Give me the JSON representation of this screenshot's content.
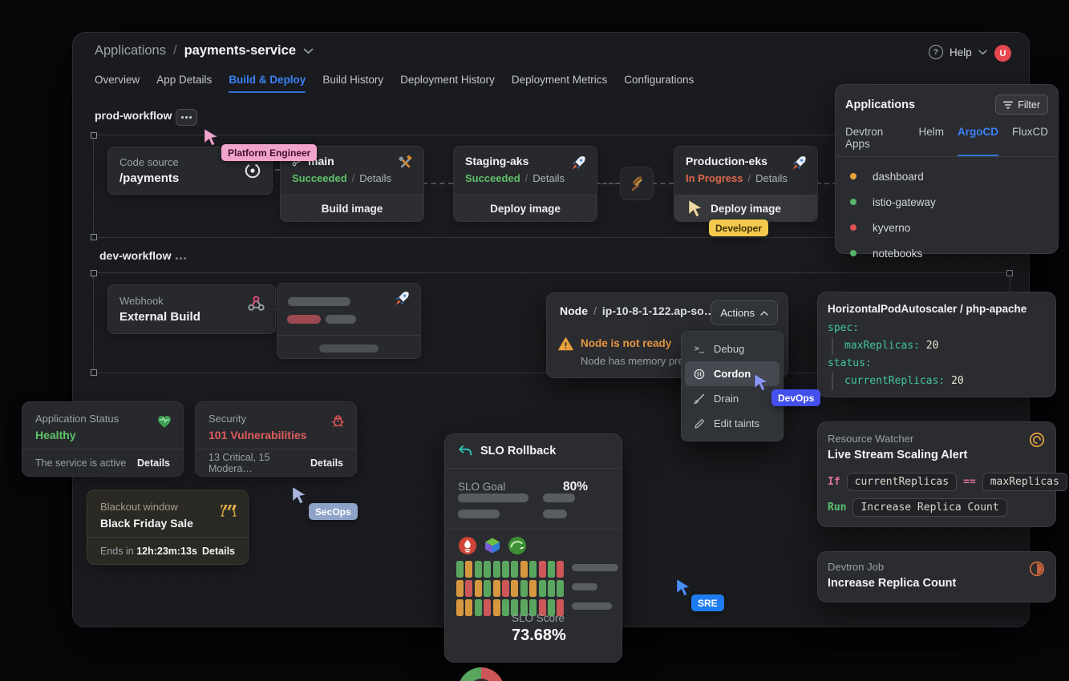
{
  "header": {
    "breadcrumb_root": "Applications",
    "separator": "/",
    "app_name": "payments-service",
    "help_label": "Help",
    "avatar_initial": "U"
  },
  "nav_tabs": {
    "items": [
      "Overview",
      "App Details",
      "Build & Deploy",
      "Build History",
      "Deployment History",
      "Deployment Metrics",
      "Configurations"
    ],
    "active": "Build & Deploy"
  },
  "prod_workflow": {
    "title": "prod-workflow",
    "code_source": {
      "label": "Code source",
      "value": "/payments"
    },
    "build_node": {
      "name": "main",
      "status": "Succeeded",
      "separator": "/",
      "details_label": "Details",
      "action_label": "Build image"
    },
    "staging_node": {
      "name": "Staging-aks",
      "status": "Succeeded",
      "separator": "/",
      "details_label": "Details",
      "action_label": "Deploy image"
    },
    "production_node": {
      "name": "Production-eks",
      "status": "In Progress",
      "separator": "/",
      "details_label": "Details",
      "action_label": "Deploy image"
    }
  },
  "dev_workflow": {
    "title": "dev-workflow",
    "webhook_node": {
      "label": "Webhook",
      "value": "External Build"
    }
  },
  "node_panel": {
    "resource_kind": "Node",
    "separator": "/",
    "resource_name": "ip-10-8-1-122.ap-so…",
    "actions_label": "Actions",
    "warning_title": "Node is not ready",
    "warning_description": "Node has memory pre",
    "menu_items": [
      {
        "label": "Debug"
      },
      {
        "label": "Cordon"
      },
      {
        "label": "Drain"
      },
      {
        "label": "Edit taints"
      }
    ],
    "selected_item": "Cordon"
  },
  "hpa_panel": {
    "title": "HorizontalPodAutoscaler / php-apache",
    "yaml": {
      "spec_key": "spec:",
      "max_replicas_key": "maxReplicas:",
      "max_replicas_value": "20",
      "status_key": "status:",
      "current_replicas_key": "currentReplicas:",
      "current_replicas_value": "20"
    }
  },
  "status_cards": {
    "application": {
      "label": "Application Status",
      "value": "Healthy",
      "value_color": "#5ec269",
      "footer": "The service is active",
      "details_label": "Details"
    },
    "security": {
      "label": "Security",
      "value": "101 Vulnerabilities",
      "value_color": "#e05c5c",
      "footer": "13 Critical, 15 Modera…",
      "details_label": "Details"
    },
    "blackout": {
      "label": "Blackout window",
      "value": "Black Friday Sale",
      "footer_prefix": "Ends in",
      "countdown": "12h:23m:13s",
      "details_label": "Details"
    }
  },
  "slo_panel": {
    "title": "SLO Rollback",
    "goal_label": "SLO Goal",
    "goal_value": "80%",
    "score_label": "SLO Score",
    "score_value": "73.68%",
    "heatmap": {
      "cell_colors": {
        "g": "#5aa65f",
        "o": "#d6973f",
        "r": "#cc5658"
      },
      "rows": [
        [
          "g",
          "o",
          "g",
          "g",
          "g",
          "g",
          "g",
          "o",
          "g",
          "r",
          "g",
          "r"
        ],
        [
          "o",
          "r",
          "o",
          "g",
          "o",
          "r",
          "o",
          "g",
          "o",
          "g",
          "g",
          "g"
        ],
        [
          "o",
          "o",
          "g",
          "r",
          "o",
          "g",
          "g",
          "g",
          "g",
          "r",
          "g",
          "r"
        ]
      ]
    },
    "donut_segments": [
      {
        "color": "#cc5658",
        "percent": 24
      },
      {
        "color": "#d6973f",
        "percent": 27
      },
      {
        "color": "#5aa65f",
        "percent": 49
      }
    ]
  },
  "resource_watcher": {
    "label": "Resource Watcher",
    "title": "Live Stream Scaling Alert",
    "if_keyword": "If",
    "condition_left": "currentReplicas",
    "operator": "==",
    "condition_right": "maxReplicas",
    "run_keyword": "Run",
    "run_action": "Increase Replica Count"
  },
  "devtron_job": {
    "label": "Devtron Job",
    "title": "Increase Replica Count"
  },
  "apps_panel": {
    "title": "Applications",
    "filter_label": "Filter",
    "tabs": [
      "Devtron Apps",
      "Helm",
      "ArgoCD",
      "FluxCD"
    ],
    "active_tab": "ArgoCD",
    "items": [
      {
        "name": "dashboard",
        "status_color": "#e8a33d"
      },
      {
        "name": "istio-gateway",
        "status_color": "#57b368"
      },
      {
        "name": "kyverno",
        "status_color": "#e05252"
      },
      {
        "name": "notebooks",
        "status_color": "#57b368"
      }
    ]
  },
  "cursors": [
    {
      "label": "Platform Engineer",
      "cursor_color": "#f2a3cd",
      "badge_bg": "#f2a3cd",
      "badge_text": "#41102c"
    },
    {
      "label": "Developer",
      "cursor_color": "#eed9a4",
      "badge_bg": "#f3ca4e",
      "badge_text": "#403005"
    },
    {
      "label": "DevOps",
      "cursor_color": "#8b96f5",
      "badge_bg": "#4450ee",
      "badge_text": "#ffffff"
    },
    {
      "label": "SecOps",
      "cursor_color": "#aab6e0",
      "badge_bg": "#8ea3c7",
      "badge_text": "#ffffff"
    },
    {
      "label": "SRE",
      "cursor_color": "#4b8ef5",
      "badge_bg": "#1f7cf0",
      "badge_text": "#ffffff"
    }
  ]
}
